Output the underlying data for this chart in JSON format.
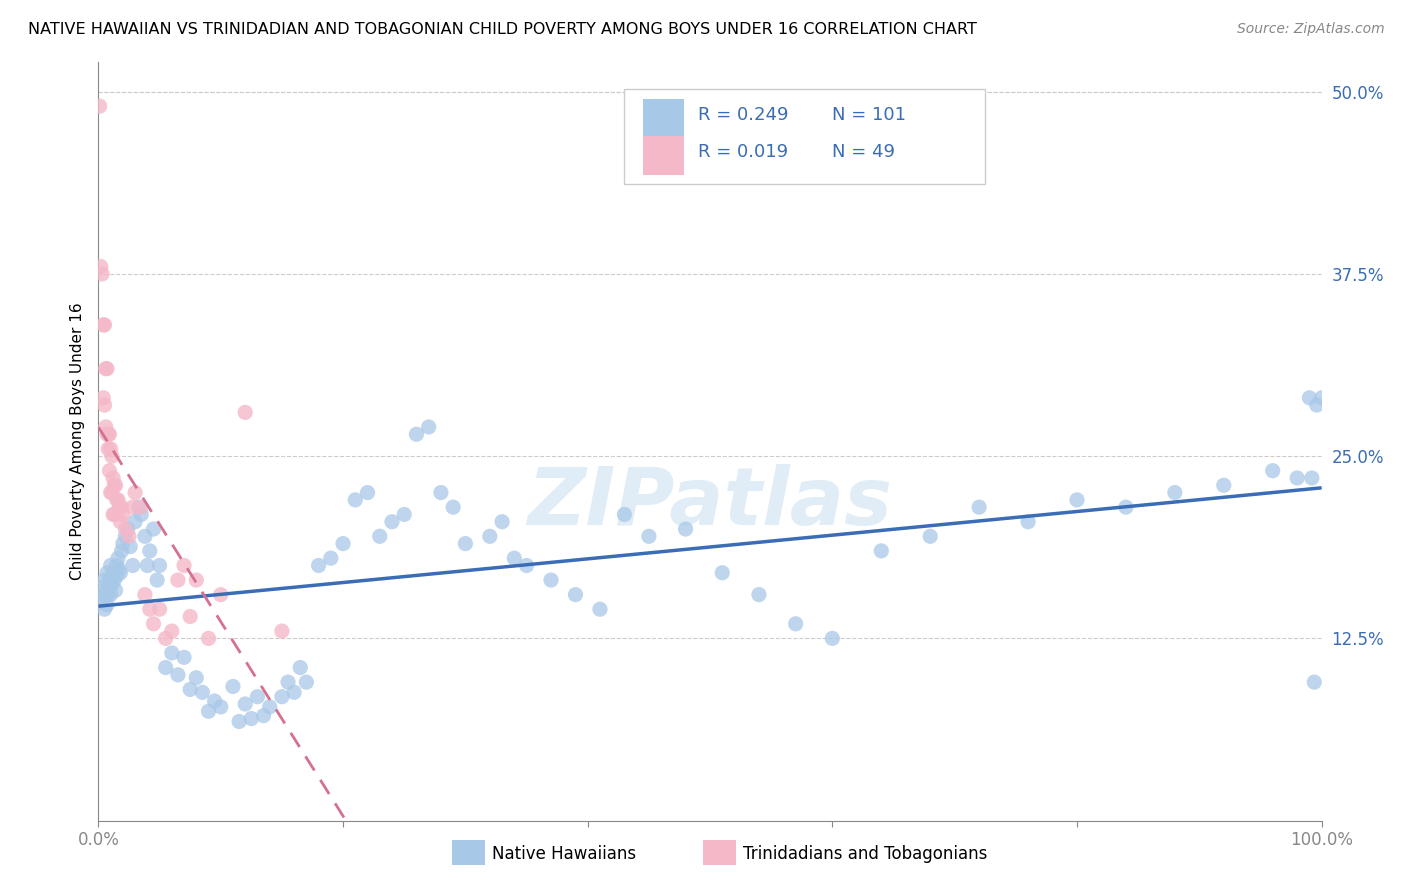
{
  "title": "NATIVE HAWAIIAN VS TRINIDADIAN AND TOBAGONIAN CHILD POVERTY AMONG BOYS UNDER 16 CORRELATION CHART",
  "source": "Source: ZipAtlas.com",
  "ylabel": "Child Poverty Among Boys Under 16",
  "ytick_labels": [
    "12.5%",
    "25.0%",
    "37.5%",
    "50.0%"
  ],
  "ytick_values": [
    0.125,
    0.25,
    0.375,
    0.5
  ],
  "color_blue": "#a8c8e8",
  "color_pink": "#f4b8c8",
  "color_line_blue": "#3a6db5",
  "color_line_pink": "#d47090",
  "watermark": "ZIPatlas",
  "blue_R": 0.249,
  "blue_N": 101,
  "pink_R": 0.019,
  "pink_N": 49,
  "blue_scatter_x": [
    0.002,
    0.003,
    0.004,
    0.005,
    0.005,
    0.006,
    0.007,
    0.007,
    0.008,
    0.008,
    0.009,
    0.01,
    0.01,
    0.011,
    0.012,
    0.013,
    0.014,
    0.015,
    0.015,
    0.016,
    0.017,
    0.018,
    0.019,
    0.02,
    0.022,
    0.024,
    0.026,
    0.028,
    0.03,
    0.033,
    0.035,
    0.038,
    0.04,
    0.042,
    0.045,
    0.048,
    0.05,
    0.055,
    0.06,
    0.065,
    0.07,
    0.075,
    0.08,
    0.085,
    0.09,
    0.095,
    0.1,
    0.11,
    0.115,
    0.12,
    0.125,
    0.13,
    0.135,
    0.14,
    0.15,
    0.155,
    0.16,
    0.165,
    0.17,
    0.18,
    0.19,
    0.2,
    0.21,
    0.22,
    0.23,
    0.24,
    0.25,
    0.26,
    0.27,
    0.28,
    0.29,
    0.3,
    0.32,
    0.33,
    0.34,
    0.35,
    0.37,
    0.39,
    0.41,
    0.43,
    0.45,
    0.48,
    0.51,
    0.54,
    0.57,
    0.6,
    0.64,
    0.68,
    0.72,
    0.76,
    0.8,
    0.84,
    0.88,
    0.92,
    0.96,
    0.98,
    0.99,
    0.992,
    0.994,
    0.996,
    1.0
  ],
  "blue_scatter_y": [
    0.15,
    0.16,
    0.155,
    0.145,
    0.165,
    0.155,
    0.148,
    0.17,
    0.16,
    0.155,
    0.165,
    0.155,
    0.175,
    0.162,
    0.17,
    0.165,
    0.158,
    0.175,
    0.168,
    0.18,
    0.172,
    0.17,
    0.185,
    0.19,
    0.195,
    0.2,
    0.188,
    0.175,
    0.205,
    0.215,
    0.21,
    0.195,
    0.175,
    0.185,
    0.2,
    0.165,
    0.175,
    0.105,
    0.115,
    0.1,
    0.112,
    0.09,
    0.098,
    0.088,
    0.075,
    0.082,
    0.078,
    0.092,
    0.068,
    0.08,
    0.07,
    0.085,
    0.072,
    0.078,
    0.085,
    0.095,
    0.088,
    0.105,
    0.095,
    0.175,
    0.18,
    0.19,
    0.22,
    0.225,
    0.195,
    0.205,
    0.21,
    0.265,
    0.27,
    0.225,
    0.215,
    0.19,
    0.195,
    0.205,
    0.18,
    0.175,
    0.165,
    0.155,
    0.145,
    0.21,
    0.195,
    0.2,
    0.17,
    0.155,
    0.135,
    0.125,
    0.185,
    0.195,
    0.215,
    0.205,
    0.22,
    0.215,
    0.225,
    0.23,
    0.24,
    0.235,
    0.29,
    0.235,
    0.095,
    0.285,
    0.29
  ],
  "pink_scatter_x": [
    0.001,
    0.002,
    0.003,
    0.004,
    0.004,
    0.005,
    0.005,
    0.006,
    0.006,
    0.007,
    0.007,
    0.008,
    0.008,
    0.009,
    0.009,
    0.01,
    0.01,
    0.011,
    0.011,
    0.012,
    0.012,
    0.013,
    0.013,
    0.014,
    0.015,
    0.016,
    0.017,
    0.018,
    0.019,
    0.02,
    0.022,
    0.025,
    0.028,
    0.03,
    0.035,
    0.038,
    0.042,
    0.045,
    0.05,
    0.055,
    0.06,
    0.065,
    0.07,
    0.075,
    0.08,
    0.09,
    0.1,
    0.12,
    0.15
  ],
  "pink_scatter_y": [
    0.49,
    0.38,
    0.375,
    0.34,
    0.29,
    0.285,
    0.34,
    0.27,
    0.31,
    0.265,
    0.31,
    0.255,
    0.265,
    0.24,
    0.265,
    0.225,
    0.255,
    0.225,
    0.25,
    0.21,
    0.235,
    0.21,
    0.23,
    0.23,
    0.22,
    0.22,
    0.215,
    0.205,
    0.215,
    0.21,
    0.2,
    0.195,
    0.215,
    0.225,
    0.215,
    0.155,
    0.145,
    0.135,
    0.145,
    0.125,
    0.13,
    0.165,
    0.175,
    0.14,
    0.165,
    0.125,
    0.155,
    0.28,
    0.13
  ]
}
